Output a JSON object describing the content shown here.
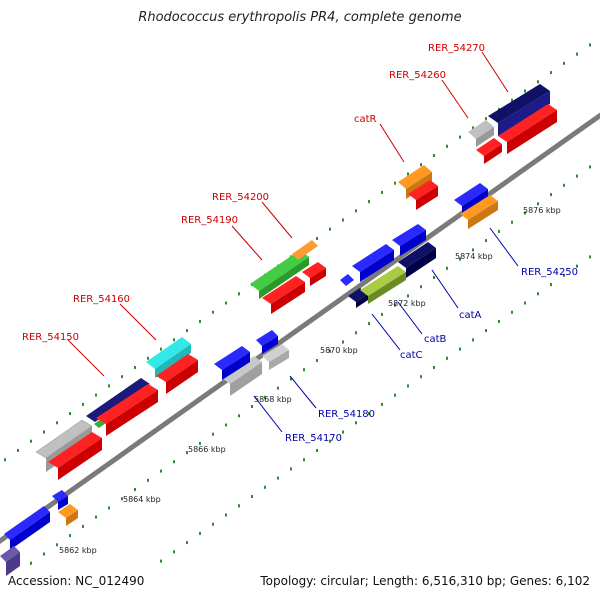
{
  "title": "Rhodococcus erythropolis PR4, complete genome",
  "footer": {
    "accession": "Accession: NC_012490",
    "summary": "Topology: circular; Length: 6,516,310 bp; Genes: 6,102"
  },
  "colors": {
    "forward_label": "#cc0000",
    "reverse_label": "#0000aa",
    "backbone": "#7a7a7a"
  },
  "ruler_ticks": [
    "5862 kbp",
    "5864 kbp",
    "5866 kbp",
    "5868 kbp",
    "5870 kbp",
    "5872 kbp",
    "5874 kbp",
    "5876 kbp"
  ],
  "forward_labels": [
    "RER_54150",
    "RER_54160",
    "RER_54190",
    "RER_54200",
    "catR",
    "RER_54260",
    "RER_54270"
  ],
  "reverse_labels": [
    "RER_54170",
    "RER_54180",
    "catC",
    "catB",
    "catA",
    "RER_54250"
  ]
}
